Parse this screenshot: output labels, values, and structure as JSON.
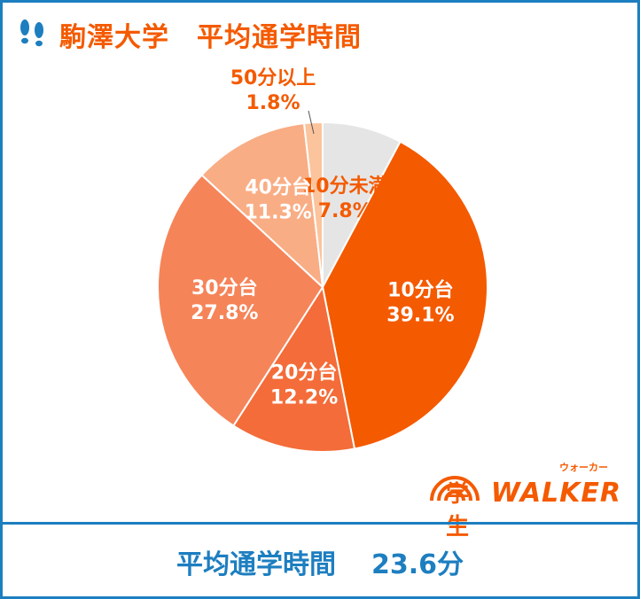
{
  "header": {
    "university": "駒澤大学",
    "subtitle": "平均通学時間",
    "icon": "footprints-icon",
    "accent": "#f45a00"
  },
  "chart_data": {
    "type": "pie",
    "slices": [
      {
        "label": "10分未満",
        "value": 7.8,
        "display": "7.8%",
        "color": "#e5e5e5",
        "text_color": "#f45a00"
      },
      {
        "label": "10分台",
        "value": 39.1,
        "display": "39.1%",
        "color": "#f45a00",
        "text_color": "#ffffff"
      },
      {
        "label": "20分台",
        "value": 12.2,
        "display": "12.2%",
        "color": "#f46c39",
        "text_color": "#ffffff"
      },
      {
        "label": "30分台",
        "value": 27.8,
        "display": "27.8%",
        "color": "#f68459",
        "text_color": "#ffffff"
      },
      {
        "label": "40分台",
        "value": 11.3,
        "display": "11.3%",
        "color": "#f9ad84",
        "text_color": "#ffffff"
      },
      {
        "label": "50分以上",
        "value": 1.8,
        "display": "1.8%",
        "color": "#fbc49d",
        "text_color": "#f45a00"
      }
    ],
    "start_angle_deg": 0,
    "direction": "clockwise"
  },
  "footer": {
    "label": "平均通学時間",
    "value": "23.6分",
    "color": "#1d7ec0"
  },
  "logo": {
    "kanji": "学生",
    "brand": "WALKER",
    "kana": "ウォーカー"
  }
}
